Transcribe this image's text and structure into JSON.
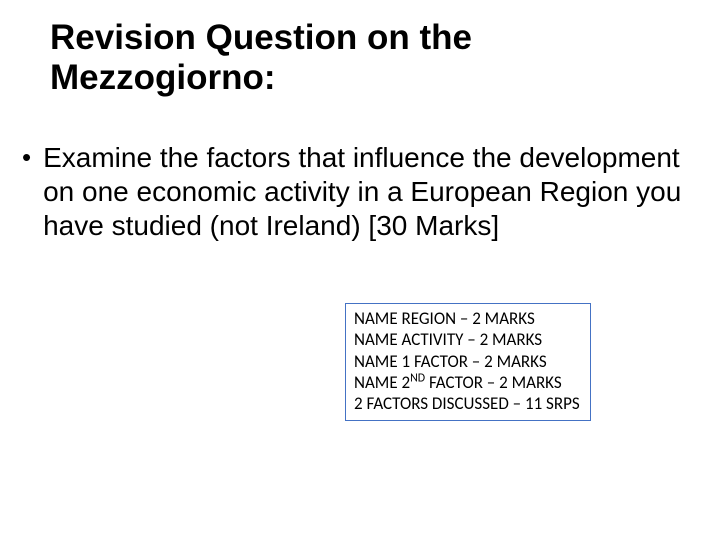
{
  "title": "Revision Question on the Mezzogiorno:",
  "bullet": {
    "marker": "•",
    "text": "Examine the factors that influence the development on one economic activity in a European Region you have studied (not Ireland) [30 Marks]"
  },
  "marks_box": {
    "border_color": "#4472c4",
    "lines": {
      "l1": "NAME REGION – 2 MARKS",
      "l2": "NAME ACTIVITY – 2 MARKS",
      "l3": "NAME 1 FACTOR – 2 MARKS",
      "l4_pre": "NAME 2",
      "l4_sup": "ND",
      "l4_post": " FACTOR – 2 MARKS",
      "l5": "2 FACTORS DISCUSSED – 11 SRPS"
    }
  },
  "colors": {
    "background": "#ffffff",
    "text": "#000000"
  },
  "typography": {
    "title_fontsize": 35,
    "body_fontsize": 28,
    "box_fontsize": 17
  }
}
